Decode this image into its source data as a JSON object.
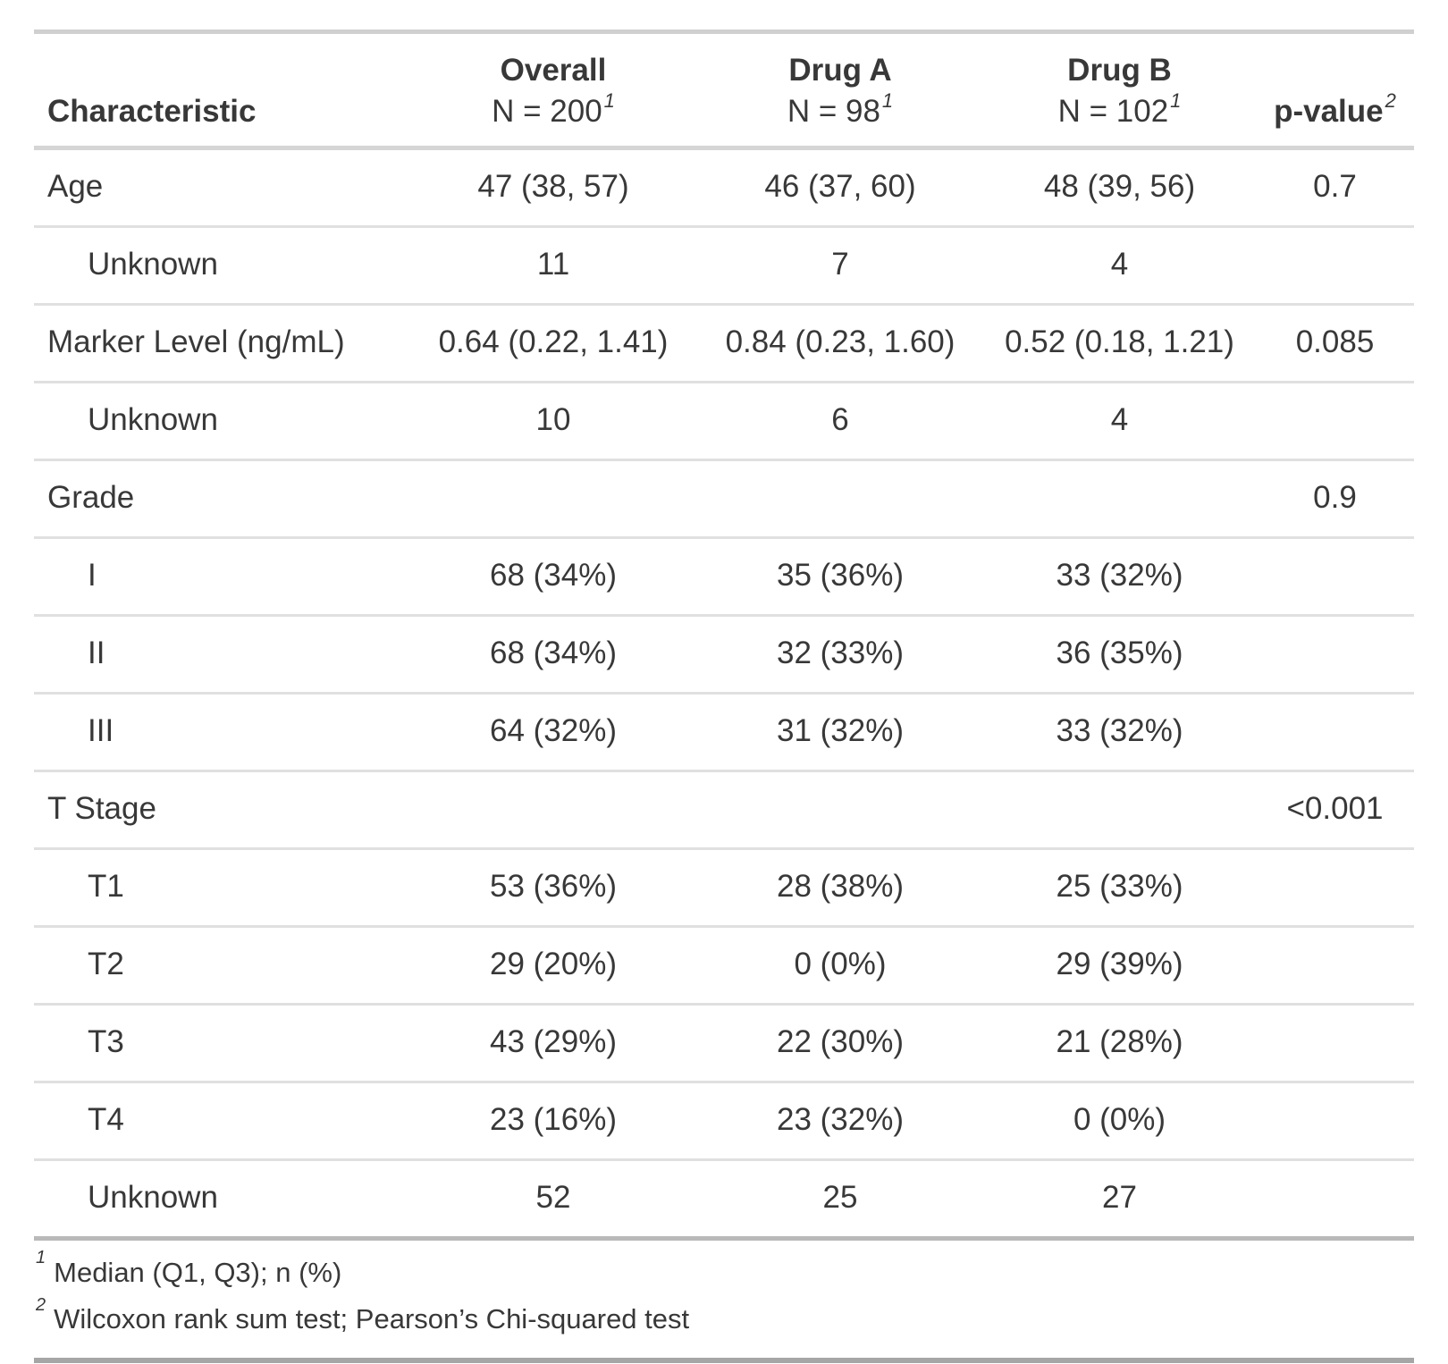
{
  "table": {
    "columns": [
      {
        "label": "Characteristic",
        "sublabel": "",
        "mark": ""
      },
      {
        "label": "Overall",
        "sublabel": "N = 200",
        "mark": "1"
      },
      {
        "label": "Drug A",
        "sublabel": "N = 98",
        "mark": "1"
      },
      {
        "label": "Drug B",
        "sublabel": "N = 102",
        "mark": "1"
      },
      {
        "label": "p-value",
        "sublabel": "",
        "mark": "2"
      }
    ],
    "rows": [
      {
        "label": "Age",
        "indent": false,
        "overall": "47 (38, 57)",
        "drug_a": "46 (37, 60)",
        "drug_b": "48 (39, 56)",
        "p_value": "0.7"
      },
      {
        "label": "Unknown",
        "indent": true,
        "overall": "11",
        "drug_a": "7",
        "drug_b": "4",
        "p_value": ""
      },
      {
        "label": "Marker Level (ng/mL)",
        "indent": false,
        "overall": "0.64 (0.22, 1.41)",
        "drug_a": "0.84 (0.23, 1.60)",
        "drug_b": "0.52 (0.18, 1.21)",
        "p_value": "0.085"
      },
      {
        "label": "Unknown",
        "indent": true,
        "overall": "10",
        "drug_a": "6",
        "drug_b": "4",
        "p_value": ""
      },
      {
        "label": "Grade",
        "indent": false,
        "overall": "",
        "drug_a": "",
        "drug_b": "",
        "p_value": "0.9"
      },
      {
        "label": "I",
        "indent": true,
        "overall": "68 (34%)",
        "drug_a": "35 (36%)",
        "drug_b": "33 (32%)",
        "p_value": ""
      },
      {
        "label": "II",
        "indent": true,
        "overall": "68 (34%)",
        "drug_a": "32 (33%)",
        "drug_b": "36 (35%)",
        "p_value": ""
      },
      {
        "label": "III",
        "indent": true,
        "overall": "64 (32%)",
        "drug_a": "31 (32%)",
        "drug_b": "33 (32%)",
        "p_value": ""
      },
      {
        "label": "T Stage",
        "indent": false,
        "overall": "",
        "drug_a": "",
        "drug_b": "",
        "p_value": "<0.001"
      },
      {
        "label": "T1",
        "indent": true,
        "overall": "53 (36%)",
        "drug_a": "28 (38%)",
        "drug_b": "25 (33%)",
        "p_value": ""
      },
      {
        "label": "T2",
        "indent": true,
        "overall": "29 (20%)",
        "drug_a": "0 (0%)",
        "drug_b": "29 (39%)",
        "p_value": ""
      },
      {
        "label": "T3",
        "indent": true,
        "overall": "43 (29%)",
        "drug_a": "22 (30%)",
        "drug_b": "21 (28%)",
        "p_value": ""
      },
      {
        "label": "T4",
        "indent": true,
        "overall": "23 (16%)",
        "drug_a": "23 (32%)",
        "drug_b": "0 (0%)",
        "p_value": ""
      },
      {
        "label": "Unknown",
        "indent": true,
        "overall": "52",
        "drug_a": "25",
        "drug_b": "27",
        "p_value": ""
      }
    ],
    "footnotes": [
      {
        "mark": "1",
        "text": "Median (Q1, Q3); n (%)"
      },
      {
        "mark": "2",
        "text": "Wilcoxon rank sum test; Pearson’s Chi-squared test"
      }
    ]
  }
}
